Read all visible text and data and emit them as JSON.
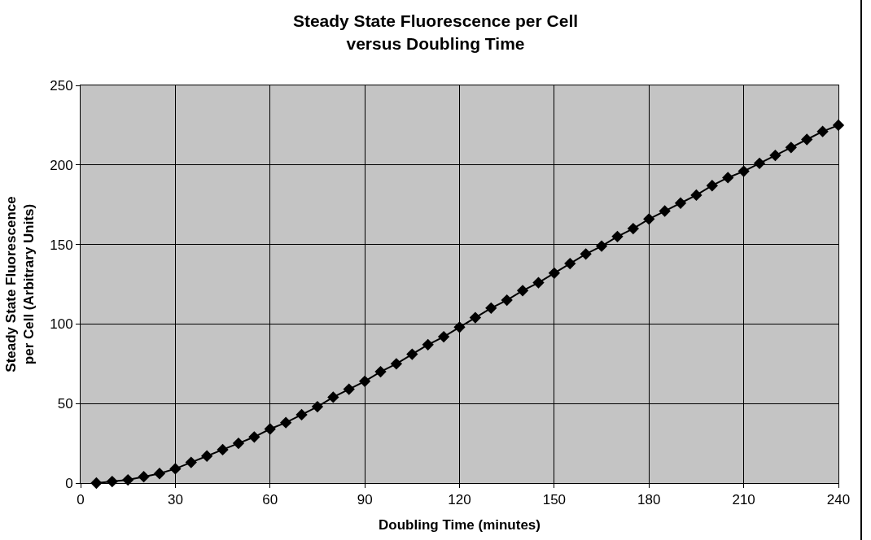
{
  "chart_data": {
    "type": "line",
    "title": "Steady State Fluorescence per Cell\nversus Doubling Time",
    "xlabel": "Doubling Time (minutes)",
    "ylabel": "Steady State Fluorescence\nper Cell (Arbitrary Units)",
    "x": [
      5,
      10,
      15,
      20,
      25,
      30,
      35,
      40,
      45,
      50,
      55,
      60,
      65,
      70,
      75,
      80,
      85,
      90,
      95,
      100,
      105,
      110,
      115,
      120,
      125,
      130,
      135,
      140,
      145,
      150,
      155,
      160,
      165,
      170,
      175,
      180,
      185,
      190,
      195,
      200,
      205,
      210,
      215,
      220,
      225,
      230,
      235,
      240
    ],
    "series": [
      {
        "color": "#000000",
        "values": [
          0,
          1,
          2,
          4,
          6,
          9,
          13,
          17,
          21,
          25,
          29,
          34,
          38,
          43,
          48,
          54,
          59,
          64,
          70,
          75,
          81,
          87,
          92,
          98,
          104,
          110,
          115,
          121,
          126,
          132,
          138,
          144,
          149,
          155,
          160,
          166,
          171,
          176,
          181,
          187,
          192,
          196,
          201,
          206,
          211,
          216,
          221,
          225
        ]
      }
    ],
    "xlim": [
      0,
      240
    ],
    "xticks": [
      0,
      30,
      60,
      90,
      120,
      150,
      180,
      210,
      240
    ],
    "ylim": [
      0,
      250
    ],
    "yticks": [
      0,
      50,
      100,
      150,
      200,
      250
    ],
    "grid": true,
    "legend": false,
    "marker": "diamond",
    "line_style": "solid"
  }
}
